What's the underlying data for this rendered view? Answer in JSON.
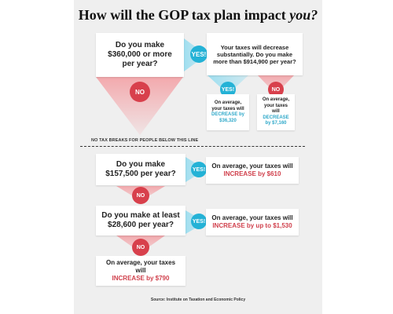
{
  "title_main": "How will the GOP tax plan impact ",
  "title_emph": "you?",
  "q1": {
    "text": "Do you make $360,000 or more per year?"
  },
  "yes_label": "YES!",
  "no_label": "NO",
  "q2": {
    "text": "Your taxes will decrease substantially. Do you make more than $914,900 per year?"
  },
  "a_high": {
    "line1": "On average, your taxes will",
    "emph": "DECREASE by $36,320"
  },
  "a_mid": {
    "line1": "On average, your taxes will",
    "emph": "DECREASE by $7,160"
  },
  "divider_label": "NO TAX BREAKS FOR PEOPLE BELOW THIS LINE",
  "q3": {
    "text": "Do you make $157,500 per year?"
  },
  "a_157": {
    "line1": "On average, your taxes will",
    "emph": "INCREASE by $610"
  },
  "q4": {
    "text": "Do you make at least $28,600 per year?"
  },
  "a_28": {
    "line1": "On average, your taxes will",
    "emph": "INCREASE by up to $1,530"
  },
  "a_low": {
    "line1": "On average, your taxes will",
    "emph": "INCREASE by $790"
  },
  "source": "Source: Institute on Taxation and Economic Policy",
  "colors": {
    "yes": "#24b2d6",
    "no": "#d8404c",
    "background": "#efefef"
  }
}
